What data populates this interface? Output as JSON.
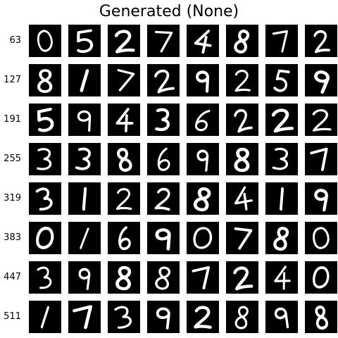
{
  "figure": {
    "title": "Generated (None)",
    "row_labels": [
      "63",
      "127",
      "191",
      "255",
      "319",
      "383",
      "447",
      "511"
    ],
    "digits": [
      [
        "0",
        "5",
        "2",
        "7",
        "4",
        "8",
        "7",
        "2"
      ],
      [
        "8",
        "1",
        "7",
        "2",
        "9",
        "2",
        "5",
        "9"
      ],
      [
        "5",
        "9",
        "4",
        "3",
        "6",
        "2",
        "2",
        "2"
      ],
      [
        "3",
        "3",
        "8",
        "6",
        "9",
        "8",
        "3",
        "7"
      ],
      [
        "3",
        "1",
        "2",
        "2",
        "8",
        "4",
        "1",
        "9"
      ],
      [
        "0",
        "1",
        "6",
        "9",
        "0",
        "7",
        "8",
        "0"
      ],
      [
        "3",
        "9",
        "8",
        "8",
        "7",
        "2",
        "4",
        "0"
      ],
      [
        "1",
        "7",
        "3",
        "9",
        "2",
        "8",
        "9",
        "8"
      ]
    ],
    "colors": {
      "background": "#ffffff",
      "tile": "#000000",
      "stroke": "#ffffff"
    }
  }
}
